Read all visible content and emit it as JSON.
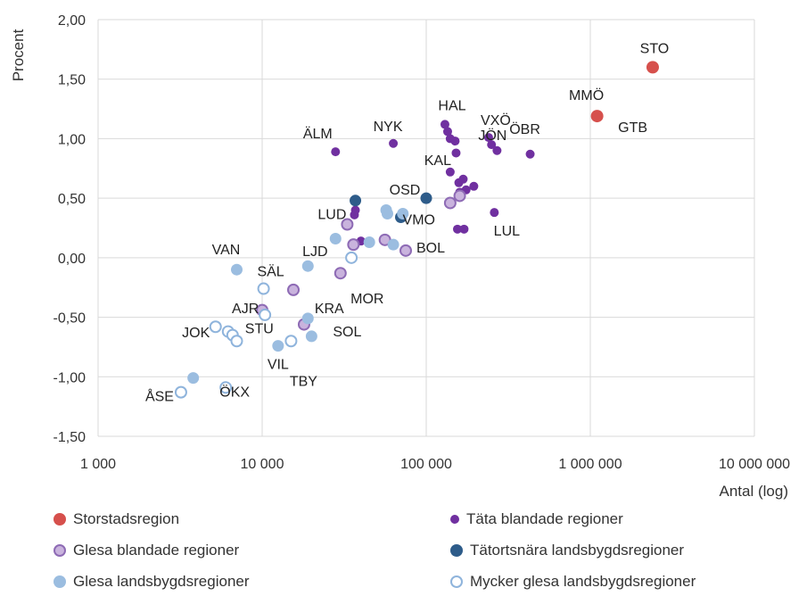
{
  "chart_data": {
    "type": "scatter",
    "xlabel": "Antal (log)",
    "ylabel": "Procent",
    "x_scale": "log",
    "xlim": [
      1000,
      10000000
    ],
    "ylim": [
      -1.5,
      2.0
    ],
    "grid": true,
    "legend_position": "bottom",
    "x_ticks": [
      "1 000",
      "10 000",
      "100 000",
      "1 000 000",
      "10 000 000"
    ],
    "y_ticks": [
      "-1,50",
      "-1,00",
      "-0,50",
      "0,00",
      "0,50",
      "1,00",
      "1,50",
      "2,00"
    ],
    "series": [
      {
        "name": "Storstadsregion",
        "color": "#d6504c",
        "marker": "large-filled",
        "points": [
          {
            "x": 2400000,
            "y": 1.6,
            "label": "STO"
          },
          {
            "x": 1100000,
            "y": 1.19,
            "label": "MMÖ"
          }
        ]
      },
      {
        "name": "Täta blandade regioner",
        "color": "#7030a0",
        "marker": "small-filled",
        "points": [
          {
            "x": 28000,
            "y": 0.89,
            "label": "ÄLM"
          },
          {
            "x": 63000,
            "y": 0.96,
            "label": "NYK"
          },
          {
            "x": 130000,
            "y": 1.12,
            "label": "HAL"
          },
          {
            "x": 135000,
            "y": 1.06
          },
          {
            "x": 140000,
            "y": 1.0
          },
          {
            "x": 150000,
            "y": 0.98
          },
          {
            "x": 152000,
            "y": 0.88
          },
          {
            "x": 140000,
            "y": 0.72,
            "label": "KAL"
          },
          {
            "x": 158000,
            "y": 0.63
          },
          {
            "x": 168000,
            "y": 0.66
          },
          {
            "x": 175000,
            "y": 0.57
          },
          {
            "x": 195000,
            "y": 0.6
          },
          {
            "x": 160000,
            "y": 0.55
          },
          {
            "x": 240000,
            "y": 1.01,
            "label": "VXÖ"
          },
          {
            "x": 250000,
            "y": 0.95
          },
          {
            "x": 270000,
            "y": 0.9,
            "label": "JÖN"
          },
          {
            "x": 430000,
            "y": 0.87,
            "label": "ÖBR"
          },
          {
            "x": 260000,
            "y": 0.38,
            "label": "LUL"
          },
          {
            "x": 155000,
            "y": 0.24
          },
          {
            "x": 170000,
            "y": 0.24
          },
          {
            "x": 37000,
            "y": 0.4
          },
          {
            "x": 36500,
            "y": 0.36
          },
          {
            "x": 40000,
            "y": 0.14
          }
        ]
      },
      {
        "name": "Glesa blandade regioner",
        "color": "#c9b3dd",
        "stroke": "#8e6bb5",
        "marker": "outlined",
        "points": [
          {
            "x": 33000,
            "y": 0.28,
            "label": "LUD"
          },
          {
            "x": 36000,
            "y": 0.11
          },
          {
            "x": 56000,
            "y": 0.15
          },
          {
            "x": 75000,
            "y": 0.06,
            "label": "BOL"
          },
          {
            "x": 30000,
            "y": -0.13,
            "label": "MOR"
          },
          {
            "x": 15500,
            "y": -0.27
          },
          {
            "x": 10000,
            "y": -0.44
          },
          {
            "x": 18000,
            "y": -0.56
          },
          {
            "x": 140000,
            "y": 0.46
          },
          {
            "x": 160000,
            "y": 0.52
          }
        ]
      },
      {
        "name": "Tätortsnära landsbygdsregioner",
        "color": "#2e5c8a",
        "marker": "medium-filled",
        "points": [
          {
            "x": 37000,
            "y": 0.48
          },
          {
            "x": 70000,
            "y": 0.34
          },
          {
            "x": 100000,
            "y": 0.5,
            "label": "OSD"
          }
        ]
      },
      {
        "name": "Glesa landsbygdsregioner",
        "color": "#9bbde0",
        "marker": "medium-filled",
        "points": [
          {
            "x": 7000,
            "y": -0.1,
            "label": "VAN"
          },
          {
            "x": 19000,
            "y": -0.07,
            "label": "LJD"
          },
          {
            "x": 19000,
            "y": -0.51,
            "label": "KRA"
          },
          {
            "x": 20000,
            "y": -0.66,
            "label": "SOL"
          },
          {
            "x": 12500,
            "y": -0.74,
            "label": "VIL"
          },
          {
            "x": 3800,
            "y": -1.01
          },
          {
            "x": 28000,
            "y": 0.16
          },
          {
            "x": 45000,
            "y": 0.13
          },
          {
            "x": 57000,
            "y": 0.4
          },
          {
            "x": 58000,
            "y": 0.37
          },
          {
            "x": 63000,
            "y": 0.11
          },
          {
            "x": 72000,
            "y": 0.37,
            "label": "VMO"
          }
        ]
      },
      {
        "name": "Mycker glesa landsbygdsregioner",
        "color": "#ffffff",
        "stroke": "#8fb4dc",
        "marker": "outlined",
        "points": [
          {
            "x": 10200,
            "y": -0.26,
            "label": "SÄL"
          },
          {
            "x": 10400,
            "y": -0.48,
            "label": "AJR"
          },
          {
            "x": 5200,
            "y": -0.58,
            "label": "JOK"
          },
          {
            "x": 6200,
            "y": -0.62
          },
          {
            "x": 6600,
            "y": -0.65,
            "label": "STU"
          },
          {
            "x": 7000,
            "y": -0.7
          },
          {
            "x": 15000,
            "y": -0.7,
            "label": "TBY"
          },
          {
            "x": 35000,
            "y": 0.0
          },
          {
            "x": 3200,
            "y": -1.13,
            "label": "ÅSE"
          },
          {
            "x": 6000,
            "y": -1.09,
            "label": "ÖKX"
          }
        ]
      }
    ],
    "extra_labels": [
      {
        "text": "GTB",
        "x": 1100000,
        "y": 1.19
      }
    ]
  }
}
